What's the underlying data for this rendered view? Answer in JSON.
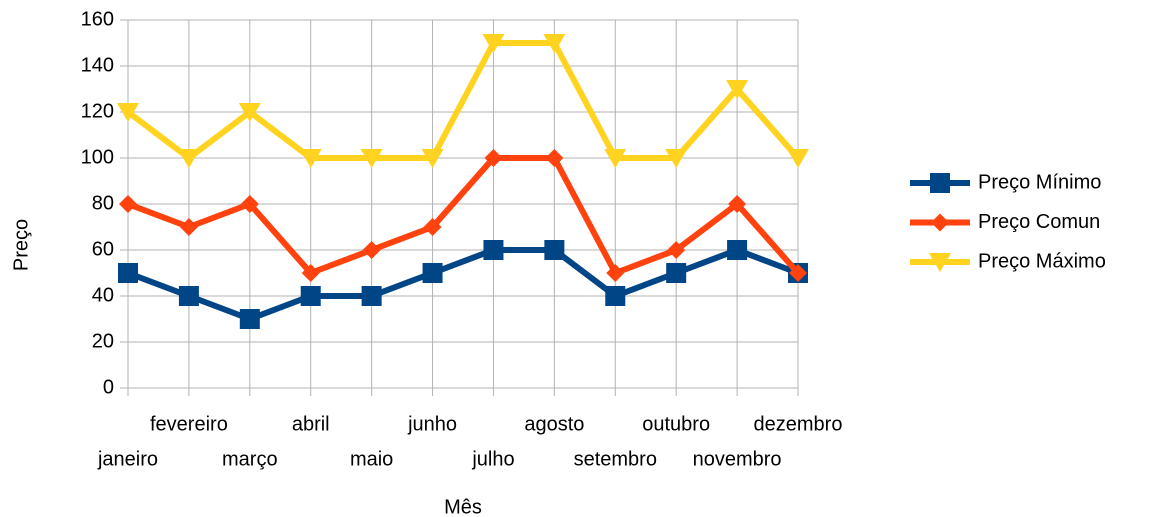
{
  "chart_data": {
    "type": "line",
    "x_label": "Mês",
    "y_label": "Preço",
    "categories": [
      "janeiro",
      "fevereiro",
      "março",
      "abril",
      "maio",
      "junho",
      "julho",
      "agosto",
      "setembro",
      "outubro",
      "novembro",
      "dezembro"
    ],
    "series": [
      {
        "name": "Preço Mínimo",
        "color": "#004586",
        "marker": "square",
        "values": [
          50,
          40,
          30,
          40,
          40,
          50,
          60,
          60,
          40,
          50,
          60,
          50
        ]
      },
      {
        "name": "Preço Comun",
        "color": "#ff420e",
        "marker": "diamond",
        "values": [
          80,
          70,
          80,
          50,
          60,
          70,
          100,
          100,
          50,
          60,
          80,
          50
        ]
      },
      {
        "name": "Preço Máximo",
        "color": "#ffd320",
        "marker": "triangle-down",
        "values": [
          120,
          100,
          120,
          100,
          100,
          100,
          150,
          150,
          100,
          100,
          130,
          100
        ]
      }
    ],
    "ylim": [
      0,
      160
    ],
    "yticks": [
      0,
      20,
      40,
      60,
      80,
      100,
      120,
      140,
      160
    ],
    "grid": true,
    "legend": "right"
  }
}
